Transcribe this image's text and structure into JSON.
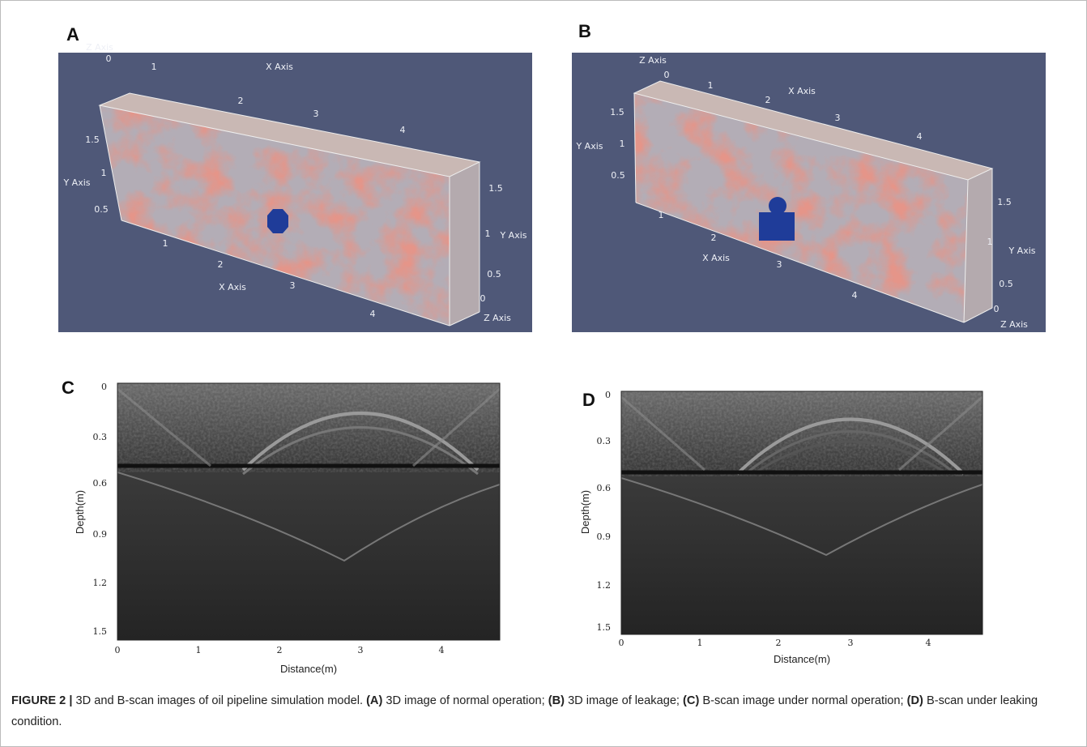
{
  "panels": [
    {
      "label": "A",
      "axis_texts": [
        "Z Axis",
        "0",
        "1",
        "X Axis",
        "2",
        "3",
        "4",
        "1.5",
        "1",
        "Y Axis",
        "0.5",
        "1",
        "2",
        "X Axis",
        "3",
        "4",
        "1.5",
        "1",
        "Y Axis",
        "0.5",
        "0",
        "Z Axis"
      ]
    },
    {
      "label": "B",
      "axis_texts": [
        "Z Axis",
        "0",
        "1",
        "X Axis",
        "2",
        "3",
        "4",
        "1.5",
        "Y Axis",
        "1",
        "0.5",
        "1",
        "2",
        "X Axis",
        "3",
        "4",
        "1.5",
        "1",
        "Y Axis",
        "0.5",
        "0",
        "Z Axis"
      ]
    },
    {
      "label": "C",
      "y_axis_label": "Depth(m)",
      "x_axis_label": "Distance(m)",
      "y_tick_labels": [
        "0",
        "0.3",
        "0.6",
        "0.9",
        "1.2",
        "1.5"
      ],
      "x_tick_labels": [
        "0",
        "1",
        "2",
        "3",
        "4"
      ]
    },
    {
      "label": "D",
      "y_axis_label": "Depth(m)",
      "x_axis_label": "Distance(m)",
      "y_tick_labels": [
        "0",
        "0.3",
        "0.6",
        "0.9",
        "1.2",
        "1.5"
      ],
      "x_tick_labels": [
        "0",
        "1",
        "2",
        "3",
        "4"
      ]
    }
  ],
  "caption": [
    {
      "text": "FIGURE 2 |",
      "bold": true
    },
    {
      "text": " 3D and B-scan images of oil pipeline simulation model. ",
      "bold": false
    },
    {
      "text": "(A)",
      "bold": true
    },
    {
      "text": " 3D image of normal operation; ",
      "bold": false
    },
    {
      "text": "(B)",
      "bold": true
    },
    {
      "text": " 3D image of leakage; ",
      "bold": false
    },
    {
      "text": "(C)",
      "bold": true
    },
    {
      "text": " B-scan image under normal operation; ",
      "bold": false
    },
    {
      "text": "(D)",
      "bold": true
    },
    {
      "text": " B-scan under leaking condition.",
      "bold": false
    }
  ]
}
